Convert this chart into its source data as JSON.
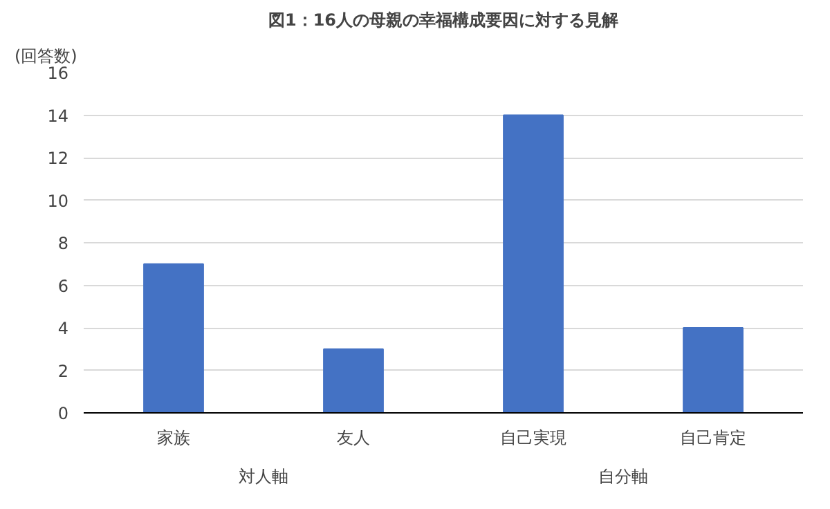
{
  "chart_data": {
    "type": "bar",
    "title": "図1：16人の母親の幸福構成要因に対する見解",
    "ylabel": "(回答数)",
    "categories": [
      "家族",
      "友人",
      "自己実現",
      "自己肯定"
    ],
    "values": [
      7,
      3,
      14,
      4
    ],
    "color": "#4472c4",
    "ylim": [
      0,
      16
    ],
    "yticks": [
      0,
      2,
      4,
      6,
      8,
      10,
      12,
      14,
      16
    ],
    "grid": "y",
    "annotations": [
      "対人軸",
      "自分軸"
    ]
  }
}
